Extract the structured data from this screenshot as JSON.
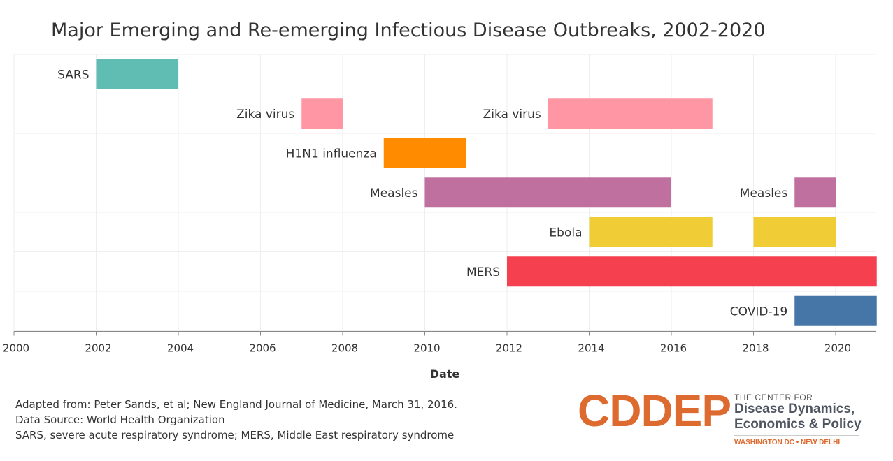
{
  "chart_data": {
    "type": "bar",
    "subtype": "timeline-gantt",
    "title": "Major Emerging and Re-emerging Infectious Disease Outbreaks, 2002-2020",
    "xlabel": "Date",
    "ylabel": "",
    "xlim": [
      2000,
      2021
    ],
    "x_ticks": [
      "2000",
      "2002",
      "2004",
      "2006",
      "2008",
      "2010",
      "2012",
      "2014",
      "2016",
      "2018",
      "2020"
    ],
    "grid": true,
    "rows": [
      {
        "color": "#5fbdb3",
        "segments": [
          {
            "label": "SARS",
            "start": 2002,
            "end": 2004
          }
        ]
      },
      {
        "color": "#ff96a3",
        "segments": [
          {
            "label": "Zika virus",
            "start": 2007,
            "end": 2008
          },
          {
            "label": "Zika virus",
            "start": 2013,
            "end": 2017
          }
        ]
      },
      {
        "color": "#ff8c00",
        "segments": [
          {
            "label": "H1N1 influenza",
            "start": 2009,
            "end": 2011
          }
        ]
      },
      {
        "color": "#bf709f",
        "segments": [
          {
            "label": "Measles",
            "start": 2010,
            "end": 2016
          },
          {
            "label": "Measles",
            "start": 2019,
            "end": 2020
          }
        ]
      },
      {
        "color": "#f0cd36",
        "segments": [
          {
            "label": "Ebola",
            "start": 2014,
            "end": 2017
          },
          {
            "label": "",
            "start": 2018,
            "end": 2020
          }
        ]
      },
      {
        "color": "#f4404f",
        "segments": [
          {
            "label": "MERS",
            "start": 2012,
            "end": 2021
          }
        ]
      },
      {
        "color": "#4676a8",
        "segments": [
          {
            "label": "COVID-19",
            "start": 2019,
            "end": 2021
          }
        ]
      }
    ]
  },
  "footnotes": {
    "line1": "Adapted from: Peter Sands, et al; New England Journal of Medicine, March 31, 2016.",
    "line2": "Data Source: World Health Organization",
    "line3": "SARS, severe acute respiratory syndrome; MERS, Middle East respiratory syndrome"
  },
  "logo": {
    "wordmark": "CDDEP",
    "line1": "THE CENTER FOR",
    "line2": "Disease Dynamics,",
    "line3": "Economics & Policy",
    "line4": "WASHINGTON DC • NEW DELHI"
  },
  "colors": {
    "grid": "#eeeeee",
    "axis": "#888888",
    "text": "#333333",
    "logo_orange": "#dd6a2f"
  }
}
